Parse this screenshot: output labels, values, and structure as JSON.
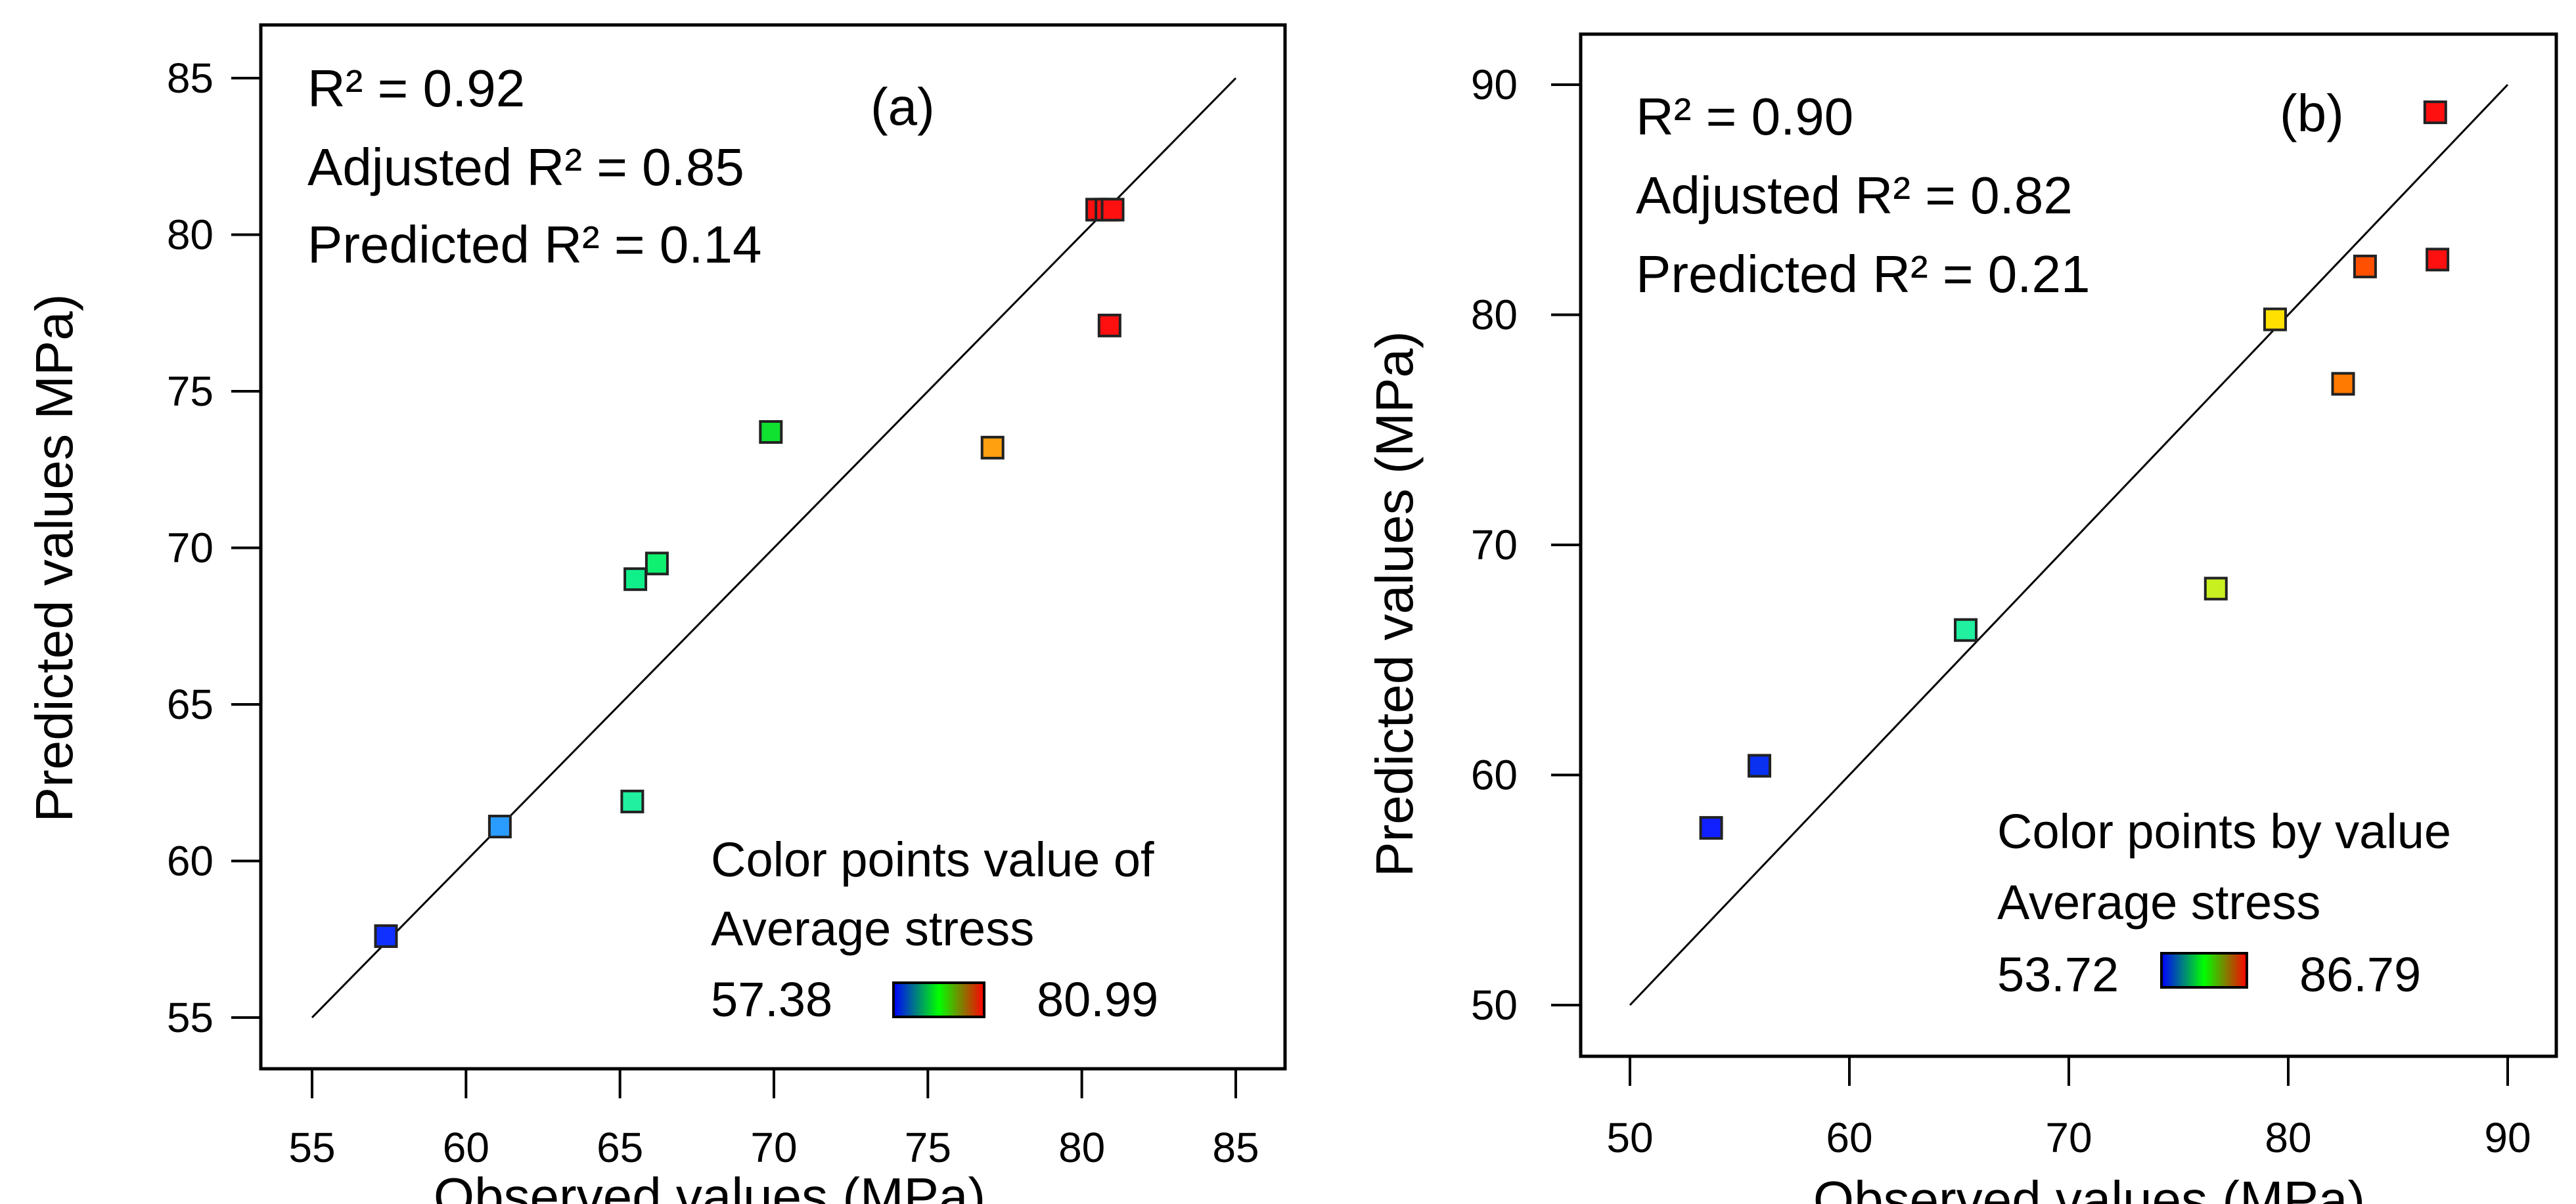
{
  "chart_data": [
    {
      "type": "scatter",
      "panel_label": "(a)",
      "xlabel": "Observed values (MPa)",
      "ylabel": "Predicted values MPa)",
      "xlim": [
        55,
        85
      ],
      "ylim": [
        55,
        85
      ],
      "xticks": [
        "55",
        "60",
        "65",
        "70",
        "75",
        "80",
        "85"
      ],
      "yticks": [
        "55",
        "60",
        "65",
        "70",
        "75",
        "80",
        "85"
      ],
      "reference_line": "y = x",
      "stats": {
        "r2": "R² = 0.92",
        "adjusted_r2": "Adjusted R² = 0.85",
        "predicted_r2": "Predicted R² = 0.14"
      },
      "legend": {
        "title_line1": "Color points value of",
        "title_line2": "Average stress",
        "min_label": "57.38",
        "max_label": "80.99",
        "min_color": "#0a3fd0",
        "max_color": "#c00000",
        "placement": "bottom-right"
      },
      "points": [
        {
          "x": 57.4,
          "y": 57.6,
          "color": "#1030ff"
        },
        {
          "x": 61.1,
          "y": 61.1,
          "color": "#2a9cff"
        },
        {
          "x": 65.5,
          "y": 69.0,
          "color": "#10f08a"
        },
        {
          "x": 66.2,
          "y": 69.5,
          "color": "#10f070"
        },
        {
          "x": 65.4,
          "y": 61.9,
          "color": "#20f0a0"
        },
        {
          "x": 69.9,
          "y": 73.7,
          "color": "#10e030"
        },
        {
          "x": 77.1,
          "y": 73.2,
          "color": "#ffa010"
        },
        {
          "x": 80.9,
          "y": 77.1,
          "color": "#ff1010"
        },
        {
          "x": 80.5,
          "y": 80.8,
          "color": "#ff1010"
        },
        {
          "x": 80.8,
          "y": 80.8,
          "color": "#ff1010"
        },
        {
          "x": 81.0,
          "y": 80.8,
          "color": "#ff1010"
        }
      ]
    },
    {
      "type": "scatter",
      "panel_label": "(b)",
      "xlabel": "Observed values (MPa)",
      "ylabel": "Predicted values (MPa)",
      "xlim": [
        50,
        90
      ],
      "ylim": [
        50,
        90
      ],
      "xticks": [
        "50",
        "60",
        "70",
        "80",
        "90"
      ],
      "yticks": [
        "50",
        "60",
        "70",
        "80",
        "90"
      ],
      "reference_line": "y = x",
      "stats": {
        "r2": "R² = 0.90",
        "adjusted_r2": "Adjusted R² = 0.82",
        "predicted_r2": "Predicted R² = 0.21"
      },
      "legend": {
        "title_line1": "Color points by value",
        "title_line2": "Average stress",
        "min_label": "53.72",
        "max_label": "86.79",
        "min_color": "#0a3fd0",
        "max_color": "#c00000",
        "placement": "bottom-right"
      },
      "points": [
        {
          "x": 53.7,
          "y": 57.7,
          "color": "#1020ff"
        },
        {
          "x": 55.9,
          "y": 60.4,
          "color": "#0a30f0"
        },
        {
          "x": 65.3,
          "y": 66.3,
          "color": "#20f0a0"
        },
        {
          "x": 76.7,
          "y": 68.1,
          "color": "#c8f020"
        },
        {
          "x": 79.4,
          "y": 79.8,
          "color": "#ffe000"
        },
        {
          "x": 82.5,
          "y": 77.0,
          "color": "#ff7a00"
        },
        {
          "x": 83.5,
          "y": 82.1,
          "color": "#ff5000"
        },
        {
          "x": 86.7,
          "y": 88.8,
          "color": "#ff1010"
        },
        {
          "x": 86.8,
          "y": 82.4,
          "color": "#ff1010"
        }
      ]
    }
  ]
}
